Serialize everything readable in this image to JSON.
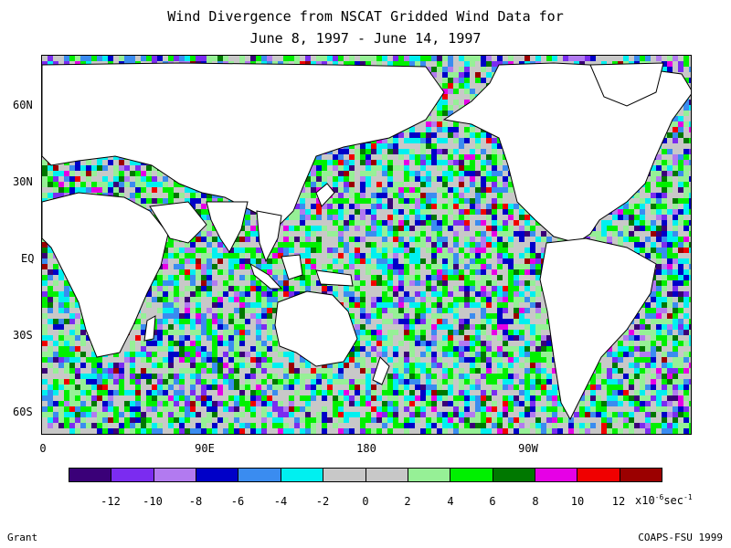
{
  "title": {
    "line1": "Wind Divergence from NSCAT Gridded Wind Data for",
    "line2": "June 8, 1997 - June 14, 1997"
  },
  "axes": {
    "y_labels": [
      "60N",
      "30N",
      "EQ",
      "30S",
      "60S"
    ],
    "x_labels": [
      "0",
      "90E",
      "180",
      "90W"
    ]
  },
  "colorbar": {
    "colors": [
      "#3a0078",
      "#7b2cf0",
      "#b27af0",
      "#0000c8",
      "#3a8cf0",
      "#00f0f0",
      "#c8c8c8",
      "#c8c8c8",
      "#96f096",
      "#00f000",
      "#007800",
      "#e600e6",
      "#f00000",
      "#9b0000"
    ],
    "labels": [
      "-12",
      "-10",
      "-8",
      "-6",
      "-4",
      "-2",
      "0",
      "2",
      "4",
      "6",
      "8",
      "10",
      "12"
    ],
    "units_prefix": "x10",
    "units_exp": "-6",
    "units_suffix": "sec",
    "units_exp2": "-1"
  },
  "credits": {
    "left": "Grant",
    "right": "COAPS-FSU 1999"
  }
}
